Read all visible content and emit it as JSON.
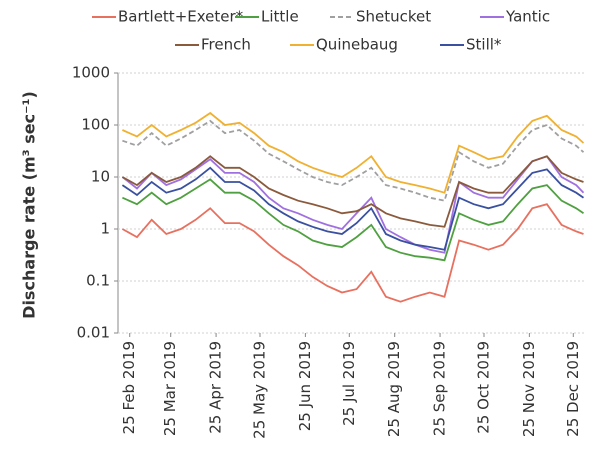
{
  "chart_data": {
    "type": "line",
    "y_label": "Discharge rate (m³ sec⁻¹)",
    "yscale": "log",
    "grid": true,
    "ylim": [
      0.01,
      1000
    ],
    "yticks": [
      0.01,
      0.1,
      1,
      10,
      100,
      1000
    ],
    "xlim": [
      "2019-02-17",
      "2020-01-02"
    ],
    "xticks": [
      {
        "value": "2019-02-25",
        "label": "25 Feb 2019"
      },
      {
        "value": "2019-03-25",
        "label": "25 Mar 2019"
      },
      {
        "value": "2019-04-25",
        "label": "25 Apr 2019"
      },
      {
        "value": "2019-05-25",
        "label": "25 May 2019"
      },
      {
        "value": "2019-06-25",
        "label": "25 Jun 2019"
      },
      {
        "value": "2019-07-25",
        "label": "25 Jul 2019"
      },
      {
        "value": "2019-08-25",
        "label": "25 Aug 2019"
      },
      {
        "value": "2019-09-25",
        "label": "25 Sep 2019"
      },
      {
        "value": "2019-10-25",
        "label": "25 Oct 2019"
      },
      {
        "value": "2019-11-25",
        "label": "25 Nov 2019"
      },
      {
        "value": "2019-12-25",
        "label": "25 Dec 2019"
      }
    ],
    "x": [
      "2019-02-20",
      "2019-03-02",
      "2019-03-12",
      "2019-03-22",
      "2019-04-01",
      "2019-04-11",
      "2019-04-21",
      "2019-05-01",
      "2019-05-11",
      "2019-05-21",
      "2019-05-31",
      "2019-06-10",
      "2019-06-20",
      "2019-06-30",
      "2019-07-10",
      "2019-07-20",
      "2019-07-30",
      "2019-08-09",
      "2019-08-19",
      "2019-08-29",
      "2019-09-08",
      "2019-09-18",
      "2019-09-28",
      "2019-10-08",
      "2019-10-18",
      "2019-10-28",
      "2019-11-07",
      "2019-11-17",
      "2019-11-27",
      "2019-12-07",
      "2019-12-17",
      "2019-12-27",
      "2020-01-01"
    ],
    "series": [
      {
        "name": "Bartlett+Exeter*",
        "color": "#e8705f",
        "line_style": "solid",
        "values": [
          1,
          0.7,
          1.5,
          0.8,
          1,
          1.5,
          2.5,
          1.3,
          1.3,
          0.9,
          0.5,
          0.3,
          0.2,
          0.12,
          0.08,
          0.06,
          0.07,
          0.15,
          0.05,
          0.04,
          0.05,
          0.06,
          0.05,
          0.6,
          0.5,
          0.4,
          0.5,
          1,
          2.5,
          3,
          1.2,
          0.9,
          0.8
        ]
      },
      {
        "name": "Little",
        "color": "#4fa040",
        "line_style": "solid",
        "values": [
          4,
          3,
          5,
          3,
          4,
          6,
          9,
          5,
          5,
          3.5,
          2,
          1.2,
          0.9,
          0.6,
          0.5,
          0.45,
          0.7,
          1.2,
          0.45,
          0.35,
          0.3,
          0.28,
          0.25,
          2,
          1.5,
          1.2,
          1.4,
          3,
          6,
          7,
          3.5,
          2.5,
          2
        ]
      },
      {
        "name": "Shetucket",
        "color": "#a0a0a0",
        "line_style": "dashed",
        "values": [
          50,
          40,
          70,
          40,
          55,
          80,
          120,
          70,
          80,
          50,
          28,
          20,
          14,
          10,
          8,
          7,
          10,
          15,
          7,
          6,
          5,
          4,
          3.5,
          30,
          20,
          15,
          18,
          40,
          80,
          100,
          55,
          40,
          30
        ]
      },
      {
        "name": "Yantic",
        "color": "#a070e0",
        "line_style": "solid",
        "values": [
          10,
          6,
          12,
          7,
          9,
          14,
          22,
          12,
          12,
          8,
          4,
          2.5,
          2,
          1.5,
          1.2,
          1,
          2,
          4,
          1,
          0.7,
          0.5,
          0.4,
          0.35,
          8,
          5,
          4,
          4,
          9,
          20,
          25,
          10,
          7,
          5
        ]
      },
      {
        "name": "French",
        "color": "#8b5a3c",
        "line_style": "solid",
        "values": [
          10,
          7,
          12,
          8,
          10,
          15,
          25,
          15,
          15,
          10,
          6,
          4.5,
          3.5,
          3,
          2.5,
          2,
          2.2,
          3,
          2,
          1.6,
          1.4,
          1.2,
          1.1,
          8,
          6,
          5,
          5,
          10,
          20,
          25,
          12,
          9,
          8
        ]
      },
      {
        "name": "Quinebaug",
        "color": "#f0b030",
        "line_style": "solid",
        "values": [
          80,
          60,
          100,
          60,
          80,
          110,
          170,
          100,
          110,
          70,
          40,
          30,
          20,
          15,
          12,
          10,
          15,
          25,
          10,
          8,
          7,
          6,
          5,
          40,
          30,
          22,
          25,
          60,
          120,
          150,
          80,
          60,
          45
        ]
      },
      {
        "name": "Still*",
        "color": "#3a50a0",
        "line_style": "solid",
        "values": [
          7,
          4.5,
          8,
          5,
          6,
          9,
          15,
          8,
          8,
          5.5,
          3,
          2,
          1.4,
          1.1,
          0.9,
          0.8,
          1.3,
          2.5,
          0.8,
          0.6,
          0.5,
          0.45,
          0.4,
          4,
          3,
          2.5,
          3,
          6,
          12,
          14,
          7,
          5,
          4
        ]
      }
    ]
  }
}
